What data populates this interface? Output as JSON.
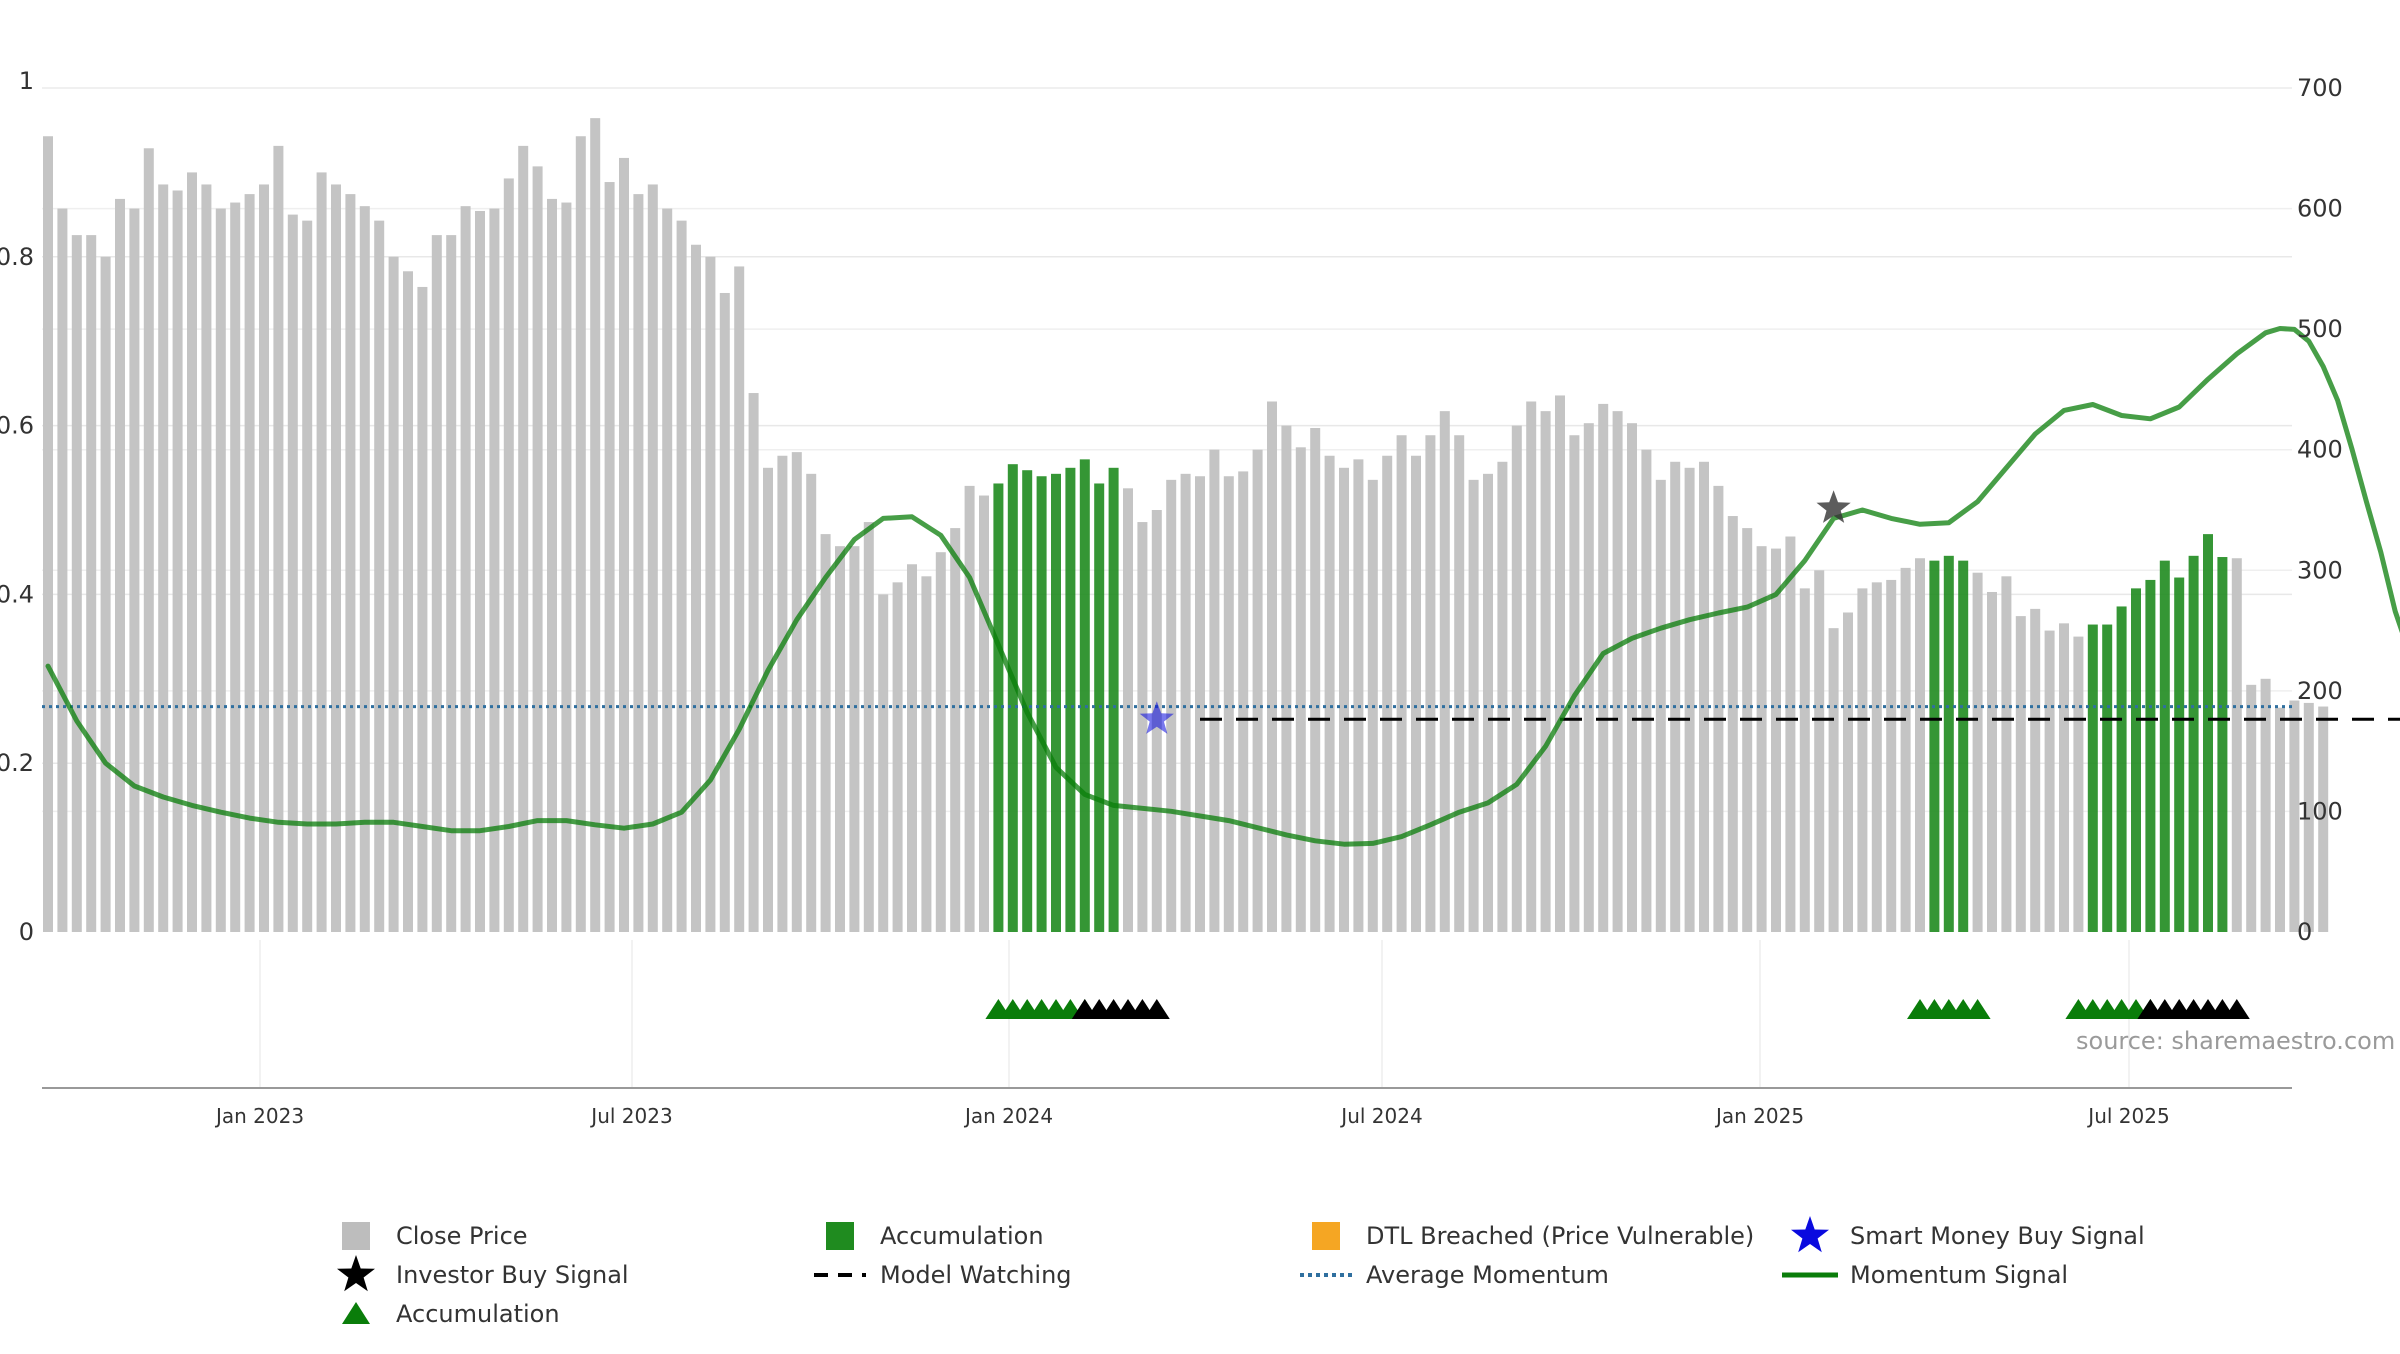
{
  "chart_data": {
    "type": "bar",
    "x_axis": {
      "tick_labels": [
        "Jan 2023",
        "Jul 2023",
        "Jan 2024",
        "Jul 2024",
        "Jan 2025",
        "Jul 2025"
      ]
    },
    "left_axis": {
      "range": [
        0,
        1
      ],
      "ticks": [
        "0",
        "0.2",
        "0.4",
        "0.6",
        "0.8",
        "1"
      ]
    },
    "right_axis": {
      "range": [
        0,
        700
      ],
      "ticks": [
        "0",
        "100",
        "200",
        "300",
        "400",
        "500",
        "600",
        "700"
      ]
    },
    "grid": true,
    "legend_position": "bottom",
    "source_label": "source: sharemaestro.com",
    "colors": {
      "close_price": "#c4c4c4",
      "accumulation": "#1f8b1f",
      "dtl_breached": "#f5a623",
      "smart_money": "#0a0adf",
      "investor": "#000000",
      "model_watching": "#000000",
      "average_momentum": "#2f6f9f",
      "momentum": "#0a7d0a"
    },
    "close_price": [
      660,
      600,
      578,
      578,
      560,
      608,
      600,
      650,
      620,
      615,
      630,
      620,
      600,
      605,
      612,
      620,
      652,
      595,
      590,
      630,
      620,
      612,
      602,
      590,
      560,
      548,
      535,
      578,
      578,
      602,
      598,
      600,
      625,
      652,
      635,
      608,
      605,
      660,
      675,
      622,
      642,
      612,
      620,
      600,
      590,
      570,
      560,
      530,
      552,
      447,
      385,
      395,
      398,
      380,
      330,
      320,
      320,
      340,
      280,
      290,
      305,
      295,
      315,
      335,
      370,
      362,
      372,
      388,
      383,
      378,
      380,
      385,
      392,
      372,
      385,
      368,
      340,
      350,
      375,
      380,
      378,
      400,
      378,
      382,
      400,
      440,
      420,
      402,
      418,
      395,
      385,
      392,
      375,
      395,
      412,
      395,
      412,
      432,
      412,
      375,
      380,
      390,
      420,
      440,
      432,
      445,
      412,
      422,
      438,
      432,
      422,
      400,
      375,
      390,
      385,
      390,
      370,
      345,
      335,
      320,
      318,
      328,
      285,
      300,
      252,
      265,
      285,
      290,
      292,
      302,
      310,
      308,
      312,
      308,
      298,
      282,
      295,
      262,
      268,
      250,
      256,
      245,
      255,
      255,
      270,
      285,
      292,
      308,
      294,
      312,
      330,
      311,
      310,
      205,
      210,
      186,
      192,
      190,
      187
    ],
    "accumulation_bar_ranges": [
      [
        66,
        74
      ],
      [
        131,
        133
      ],
      [
        142,
        151
      ]
    ],
    "momentum_signal": [
      [
        0,
        0.315
      ],
      [
        2,
        0.25
      ],
      [
        4,
        0.2
      ],
      [
        6,
        0.173
      ],
      [
        8,
        0.16
      ],
      [
        10,
        0.15
      ],
      [
        12,
        0.142
      ],
      [
        14,
        0.135
      ],
      [
        16,
        0.13
      ],
      [
        18,
        0.128
      ],
      [
        20,
        0.128
      ],
      [
        22,
        0.13
      ],
      [
        24,
        0.13
      ],
      [
        26,
        0.125
      ],
      [
        28,
        0.12
      ],
      [
        30,
        0.12
      ],
      [
        32,
        0.125
      ],
      [
        34,
        0.132
      ],
      [
        36,
        0.132
      ],
      [
        38,
        0.127
      ],
      [
        40,
        0.123
      ],
      [
        42,
        0.128
      ],
      [
        44,
        0.142
      ],
      [
        46,
        0.18
      ],
      [
        48,
        0.24
      ],
      [
        50,
        0.31
      ],
      [
        52,
        0.37
      ],
      [
        54,
        0.42
      ],
      [
        56,
        0.465
      ],
      [
        58,
        0.49
      ],
      [
        60,
        0.492
      ],
      [
        62,
        0.47
      ],
      [
        64,
        0.42
      ],
      [
        66,
        0.34
      ],
      [
        68,
        0.26
      ],
      [
        70,
        0.195
      ],
      [
        72,
        0.163
      ],
      [
        74,
        0.15
      ],
      [
        78,
        0.143
      ],
      [
        82,
        0.132
      ],
      [
        86,
        0.115
      ],
      [
        88,
        0.108
      ],
      [
        90,
        0.104
      ],
      [
        92,
        0.105
      ],
      [
        94,
        0.113
      ],
      [
        96,
        0.127
      ],
      [
        98,
        0.142
      ],
      [
        100,
        0.153
      ],
      [
        102,
        0.175
      ],
      [
        104,
        0.22
      ],
      [
        106,
        0.28
      ],
      [
        108,
        0.33
      ],
      [
        110,
        0.348
      ],
      [
        112,
        0.36
      ],
      [
        114,
        0.37
      ],
      [
        116,
        0.378
      ],
      [
        118,
        0.385
      ],
      [
        120,
        0.4
      ],
      [
        122,
        0.44
      ],
      [
        124,
        0.49
      ],
      [
        126,
        0.5
      ],
      [
        128,
        0.49
      ],
      [
        130,
        0.483
      ],
      [
        132,
        0.485
      ],
      [
        134,
        0.51
      ],
      [
        136,
        0.55
      ],
      [
        138,
        0.59
      ],
      [
        140,
        0.618
      ],
      [
        142,
        0.625
      ],
      [
        144,
        0.612
      ],
      [
        146,
        0.608
      ],
      [
        148,
        0.622
      ],
      [
        150,
        0.655
      ],
      [
        152,
        0.685
      ],
      [
        154,
        0.71
      ],
      [
        155,
        0.715
      ],
      [
        156,
        0.714
      ],
      [
        157,
        0.7
      ],
      [
        158,
        0.67
      ],
      [
        159,
        0.63
      ],
      [
        160,
        0.572
      ],
      [
        161,
        0.51
      ],
      [
        162,
        0.45
      ],
      [
        163,
        0.38
      ],
      [
        164,
        0.33
      ],
      [
        166,
        0.264
      ],
      [
        168,
        0.225
      ],
      [
        170,
        0.195
      ],
      [
        172,
        0.17
      ],
      [
        174,
        0.148
      ],
      [
        176,
        0.13
      ],
      [
        178,
        0.115
      ],
      [
        180,
        0.109
      ],
      [
        182,
        0.107
      ],
      [
        184,
        0.108
      ],
      [
        186,
        0.11
      ],
      [
        188,
        0.109
      ],
      [
        190,
        0.107
      ],
      [
        192,
        0.104
      ],
      [
        194,
        0.102
      ],
      [
        196,
        0.1
      ],
      [
        198,
        0.1
      ],
      [
        200,
        0.104
      ],
      [
        202,
        0.11
      ],
      [
        204,
        0.12
      ],
      [
        206,
        0.138
      ],
      [
        208,
        0.162
      ],
      [
        210,
        0.186
      ],
      [
        212,
        0.19
      ],
      [
        214,
        0.18
      ],
      [
        216,
        0.168
      ],
      [
        218,
        0.15
      ],
      [
        220,
        0.13
      ],
      [
        222,
        0.125
      ]
    ],
    "average_momentum": 0.267,
    "model_watching": {
      "from_index": 80,
      "to_index": 222,
      "value": 0.252
    },
    "smart_money_signal": [
      {
        "index": 77,
        "value": 0.252
      }
    ],
    "investor_buy_signal": [
      {
        "index": 124,
        "value": 0.502
      }
    ],
    "accumulation_markers": [
      {
        "from_index": 66,
        "to_index": 72,
        "color": "green"
      },
      {
        "from_index": 72,
        "to_index": 77,
        "color": "black"
      },
      {
        "from_index": 130,
        "to_index": 134,
        "color": "green"
      },
      {
        "from_index": 141,
        "to_index": 146,
        "color": "green"
      },
      {
        "from_index": 146,
        "to_index": 152,
        "color": "black"
      }
    ],
    "legend": [
      {
        "key": "close_price",
        "label": "Close Price",
        "symbol": "square",
        "color": "#bdbdbd"
      },
      {
        "key": "accumulation_bar",
        "label": "Accumulation",
        "symbol": "square",
        "color": "#1f8b1f"
      },
      {
        "key": "dtl",
        "label": "DTL Breached (Price Vulnerable)",
        "symbol": "square",
        "color": "#f5a623"
      },
      {
        "key": "smart_money",
        "label": "Smart Money Buy Signal",
        "symbol": "star",
        "color": "#0a0adf"
      },
      {
        "key": "investor",
        "label": "Investor Buy Signal",
        "symbol": "star",
        "color": "#000000"
      },
      {
        "key": "model_watching",
        "label": "Model Watching",
        "symbol": "dash",
        "color": "#000000"
      },
      {
        "key": "avg_momentum",
        "label": "Average Momentum",
        "symbol": "dotted",
        "color": "#2f6f9f"
      },
      {
        "key": "momentum",
        "label": "Momentum Signal",
        "symbol": "line",
        "color": "#0a7d0a"
      },
      {
        "key": "accumulation_marker",
        "label": "Accumulation",
        "symbol": "triangle",
        "color": "#0a7d0a"
      }
    ]
  }
}
